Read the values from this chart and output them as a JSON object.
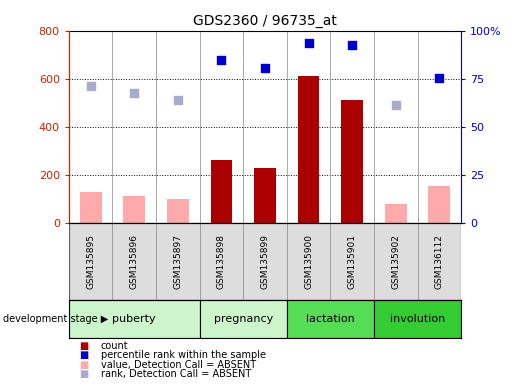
{
  "title": "GDS2360 / 96735_at",
  "samples": [
    "GSM135895",
    "GSM135896",
    "GSM135897",
    "GSM135898",
    "GSM135899",
    "GSM135900",
    "GSM135901",
    "GSM135902",
    "GSM136112"
  ],
  "stages": [
    {
      "label": "puberty",
      "start": 0,
      "end": 3,
      "color": "#ccf5cc"
    },
    {
      "label": "pregnancy",
      "start": 3,
      "end": 5,
      "color": "#ccf5cc"
    },
    {
      "label": "lactation",
      "start": 5,
      "end": 7,
      "color": "#55dd55"
    },
    {
      "label": "involution",
      "start": 7,
      "end": 9,
      "color": "#33cc33"
    }
  ],
  "bar_present_values": [
    0,
    0,
    0,
    260,
    230,
    610,
    510,
    0,
    0
  ],
  "bar_absent_values": [
    130,
    110,
    100,
    0,
    0,
    0,
    0,
    80,
    155
  ],
  "rank_present": [
    null,
    null,
    null,
    680,
    645,
    750,
    740,
    null,
    605
  ],
  "rank_absent": [
    570,
    540,
    510,
    null,
    null,
    null,
    null,
    490,
    null
  ],
  "ylim_left": [
    0,
    800
  ],
  "ylim_right": [
    0,
    100
  ],
  "yticks_left": [
    0,
    200,
    400,
    600,
    800
  ],
  "yticks_right": [
    0,
    25,
    50,
    75,
    100
  ],
  "bar_present_color": "#aa0000",
  "bar_absent_color": "#ffaaaa",
  "rank_present_color": "#0000cc",
  "rank_absent_color": "#aaaacc",
  "left_label_color": "#cc2200",
  "right_label_color": "#0000cc",
  "stage_colors": [
    "#ccf5cc",
    "#ccf5cc",
    "#55dd55",
    "#33cc33"
  ],
  "legend": [
    {
      "color": "#aa0000",
      "label": "count"
    },
    {
      "color": "#0000cc",
      "label": "percentile rank within the sample"
    },
    {
      "color": "#ffaaaa",
      "label": "value, Detection Call = ABSENT"
    },
    {
      "color": "#aaaacc",
      "label": "rank, Detection Call = ABSENT"
    }
  ]
}
